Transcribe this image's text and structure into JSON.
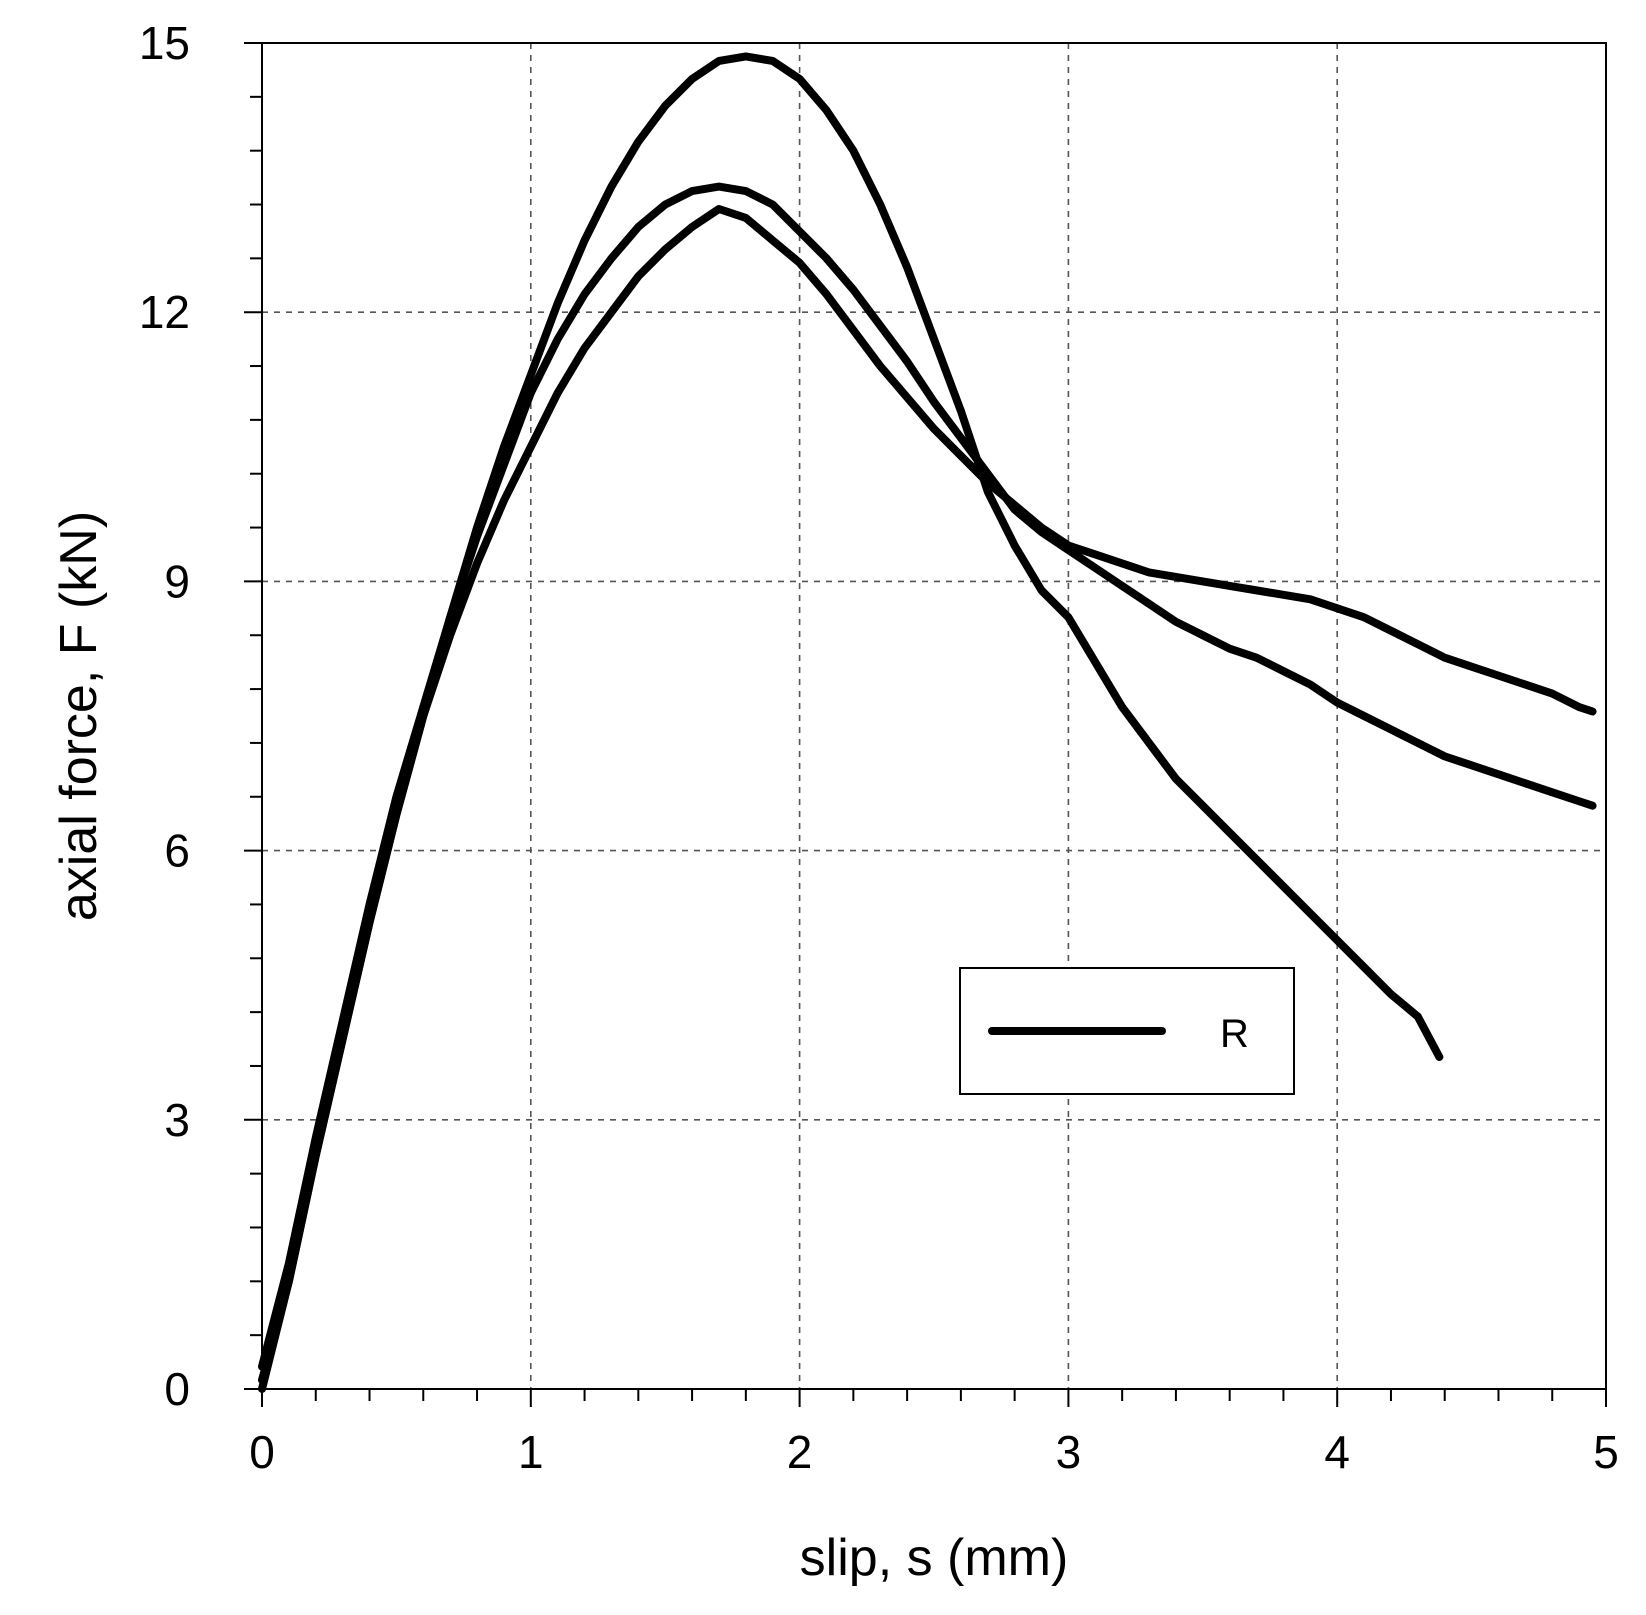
{
  "chart_data": {
    "type": "line",
    "title": "",
    "xlabel": "slip, s (mm)",
    "ylabel": "axial force, F (kN)",
    "xlim": [
      0,
      5
    ],
    "ylim": [
      0,
      15
    ],
    "xticks": [
      0,
      1,
      2,
      3,
      4,
      5
    ],
    "yticks": [
      0,
      3,
      6,
      9,
      12,
      15
    ],
    "xtick_labels": [
      "0",
      "1",
      "2",
      "3",
      "4",
      "5"
    ],
    "ytick_labels": [
      "0",
      "3",
      "6",
      "9",
      "12",
      "15"
    ],
    "grid": true,
    "legend": {
      "position": "lower-right",
      "entries": [
        {
          "label": "R",
          "color": "#000000"
        }
      ]
    },
    "series": [
      {
        "name": "R",
        "color": "#000000",
        "points": [
          [
            0.0,
            0.0
          ],
          [
            0.1,
            1.2
          ],
          [
            0.2,
            2.6
          ],
          [
            0.3,
            3.9
          ],
          [
            0.4,
            5.2
          ],
          [
            0.5,
            6.4
          ],
          [
            0.6,
            7.5
          ],
          [
            0.7,
            8.6
          ],
          [
            0.8,
            9.6
          ],
          [
            0.9,
            10.5
          ],
          [
            1.0,
            11.3
          ],
          [
            1.1,
            12.1
          ],
          [
            1.2,
            12.8
          ],
          [
            1.3,
            13.4
          ],
          [
            1.4,
            13.9
          ],
          [
            1.5,
            14.3
          ],
          [
            1.6,
            14.6
          ],
          [
            1.7,
            14.8
          ],
          [
            1.8,
            14.85
          ],
          [
            1.9,
            14.8
          ],
          [
            2.0,
            14.6
          ],
          [
            2.1,
            14.25
          ],
          [
            2.2,
            13.8
          ],
          [
            2.3,
            13.2
          ],
          [
            2.4,
            12.5
          ],
          [
            2.5,
            11.7
          ],
          [
            2.6,
            10.9
          ],
          [
            2.7,
            10.0
          ],
          [
            2.8,
            9.4
          ],
          [
            2.9,
            8.9
          ],
          [
            3.0,
            8.6
          ],
          [
            3.1,
            8.1
          ],
          [
            3.2,
            7.6
          ],
          [
            3.3,
            7.2
          ],
          [
            3.4,
            6.8
          ],
          [
            3.5,
            6.5
          ],
          [
            3.6,
            6.2
          ],
          [
            3.7,
            5.9
          ],
          [
            3.8,
            5.6
          ],
          [
            3.9,
            5.3
          ],
          [
            4.0,
            5.0
          ],
          [
            4.1,
            4.7
          ],
          [
            4.2,
            4.4
          ],
          [
            4.3,
            4.15
          ],
          [
            4.38,
            3.7
          ]
        ]
      },
      {
        "name": "R",
        "color": "#000000",
        "points": [
          [
            0.0,
            0.25
          ],
          [
            0.1,
            1.4
          ],
          [
            0.2,
            2.8
          ],
          [
            0.3,
            4.1
          ],
          [
            0.4,
            5.4
          ],
          [
            0.5,
            6.6
          ],
          [
            0.6,
            7.6
          ],
          [
            0.7,
            8.6
          ],
          [
            0.8,
            9.5
          ],
          [
            0.9,
            10.3
          ],
          [
            1.0,
            11.1
          ],
          [
            1.1,
            11.7
          ],
          [
            1.2,
            12.2
          ],
          [
            1.3,
            12.6
          ],
          [
            1.4,
            12.95
          ],
          [
            1.5,
            13.2
          ],
          [
            1.6,
            13.35
          ],
          [
            1.7,
            13.4
          ],
          [
            1.8,
            13.35
          ],
          [
            1.9,
            13.2
          ],
          [
            2.0,
            12.9
          ],
          [
            2.1,
            12.6
          ],
          [
            2.2,
            12.25
          ],
          [
            2.3,
            11.85
          ],
          [
            2.4,
            11.45
          ],
          [
            2.5,
            11.0
          ],
          [
            2.6,
            10.6
          ],
          [
            2.7,
            10.2
          ],
          [
            2.8,
            9.8
          ],
          [
            2.9,
            9.55
          ],
          [
            3.0,
            9.35
          ],
          [
            3.1,
            9.15
          ],
          [
            3.2,
            8.95
          ],
          [
            3.3,
            8.75
          ],
          [
            3.4,
            8.55
          ],
          [
            3.5,
            8.4
          ],
          [
            3.6,
            8.25
          ],
          [
            3.7,
            8.15
          ],
          [
            3.8,
            8.0
          ],
          [
            3.9,
            7.85
          ],
          [
            4.0,
            7.65
          ],
          [
            4.1,
            7.5
          ],
          [
            4.2,
            7.35
          ],
          [
            4.3,
            7.2
          ],
          [
            4.4,
            7.05
          ],
          [
            4.5,
            6.95
          ],
          [
            4.6,
            6.85
          ],
          [
            4.7,
            6.75
          ],
          [
            4.8,
            6.65
          ],
          [
            4.9,
            6.55
          ],
          [
            4.95,
            6.5
          ]
        ]
      },
      {
        "name": "R",
        "color": "#000000",
        "points": [
          [
            0.0,
            0.1
          ],
          [
            0.1,
            1.2
          ],
          [
            0.2,
            2.6
          ],
          [
            0.3,
            3.9
          ],
          [
            0.4,
            5.2
          ],
          [
            0.5,
            6.4
          ],
          [
            0.6,
            7.5
          ],
          [
            0.7,
            8.4
          ],
          [
            0.8,
            9.2
          ],
          [
            0.9,
            9.9
          ],
          [
            1.0,
            10.5
          ],
          [
            1.1,
            11.1
          ],
          [
            1.2,
            11.6
          ],
          [
            1.3,
            12.0
          ],
          [
            1.4,
            12.4
          ],
          [
            1.5,
            12.7
          ],
          [
            1.6,
            12.95
          ],
          [
            1.7,
            13.15
          ],
          [
            1.8,
            13.05
          ],
          [
            1.9,
            12.8
          ],
          [
            2.0,
            12.55
          ],
          [
            2.1,
            12.2
          ],
          [
            2.2,
            11.8
          ],
          [
            2.3,
            11.4
          ],
          [
            2.4,
            11.05
          ],
          [
            2.5,
            10.7
          ],
          [
            2.6,
            10.4
          ],
          [
            2.7,
            10.1
          ],
          [
            2.8,
            9.85
          ],
          [
            2.9,
            9.6
          ],
          [
            3.0,
            9.4
          ],
          [
            3.1,
            9.3
          ],
          [
            3.2,
            9.2
          ],
          [
            3.3,
            9.1
          ],
          [
            3.4,
            9.05
          ],
          [
            3.5,
            9.0
          ],
          [
            3.6,
            8.95
          ],
          [
            3.7,
            8.9
          ],
          [
            3.8,
            8.85
          ],
          [
            3.9,
            8.8
          ],
          [
            4.0,
            8.7
          ],
          [
            4.1,
            8.6
          ],
          [
            4.2,
            8.45
          ],
          [
            4.3,
            8.3
          ],
          [
            4.4,
            8.15
          ],
          [
            4.5,
            8.05
          ],
          [
            4.6,
            7.95
          ],
          [
            4.7,
            7.85
          ],
          [
            4.8,
            7.75
          ],
          [
            4.9,
            7.6
          ],
          [
            4.95,
            7.55
          ]
        ]
      }
    ]
  }
}
